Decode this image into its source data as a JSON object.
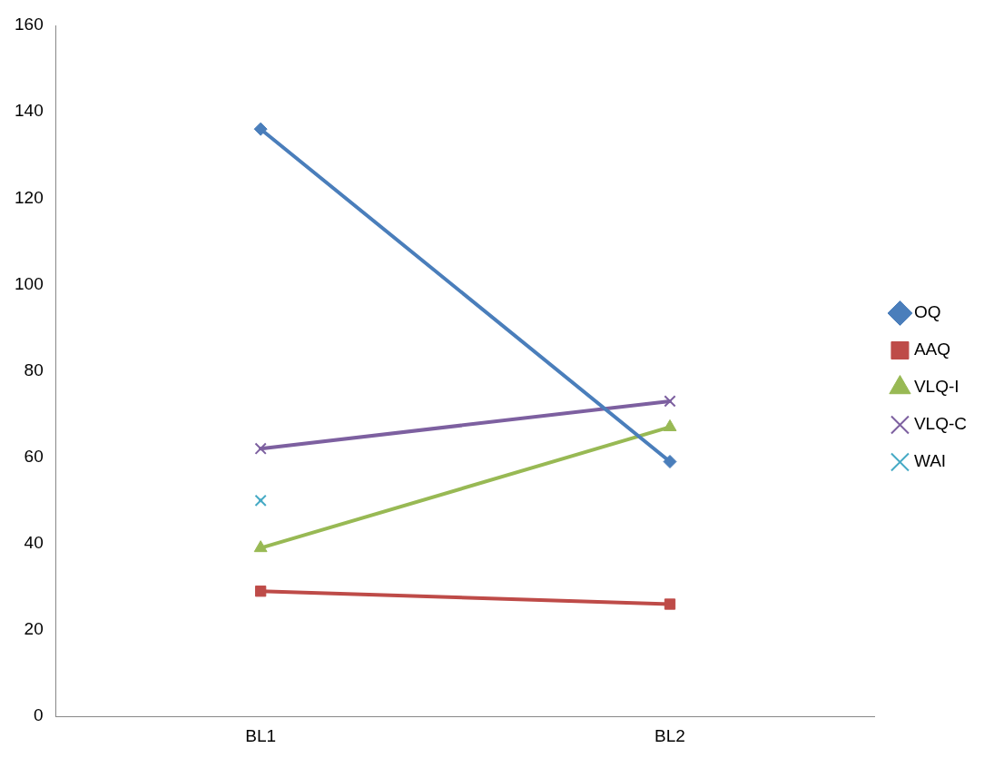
{
  "chart_data": {
    "type": "line",
    "categories": [
      "BL1",
      "BL2"
    ],
    "series": [
      {
        "name": "OQ",
        "color": "#4a7ebb",
        "marker": "diamond",
        "values": [
          136,
          59
        ]
      },
      {
        "name": "AAQ",
        "color": "#be4b48",
        "marker": "square",
        "values": [
          29,
          26
        ]
      },
      {
        "name": "VLQ-I",
        "color": "#98b954",
        "marker": "triangle",
        "values": [
          39,
          67
        ]
      },
      {
        "name": "VLQ-C",
        "color": "#7d60a0",
        "marker": "cross",
        "values": [
          62,
          73
        ]
      },
      {
        "name": "WAI",
        "color": "#46aac5",
        "marker": "cross",
        "values": [
          50,
          null
        ]
      }
    ],
    "ylim": [
      0,
      160
    ],
    "yticks": [
      0,
      20,
      40,
      60,
      80,
      100,
      120,
      140,
      160
    ],
    "grid": false,
    "legend": "right"
  }
}
